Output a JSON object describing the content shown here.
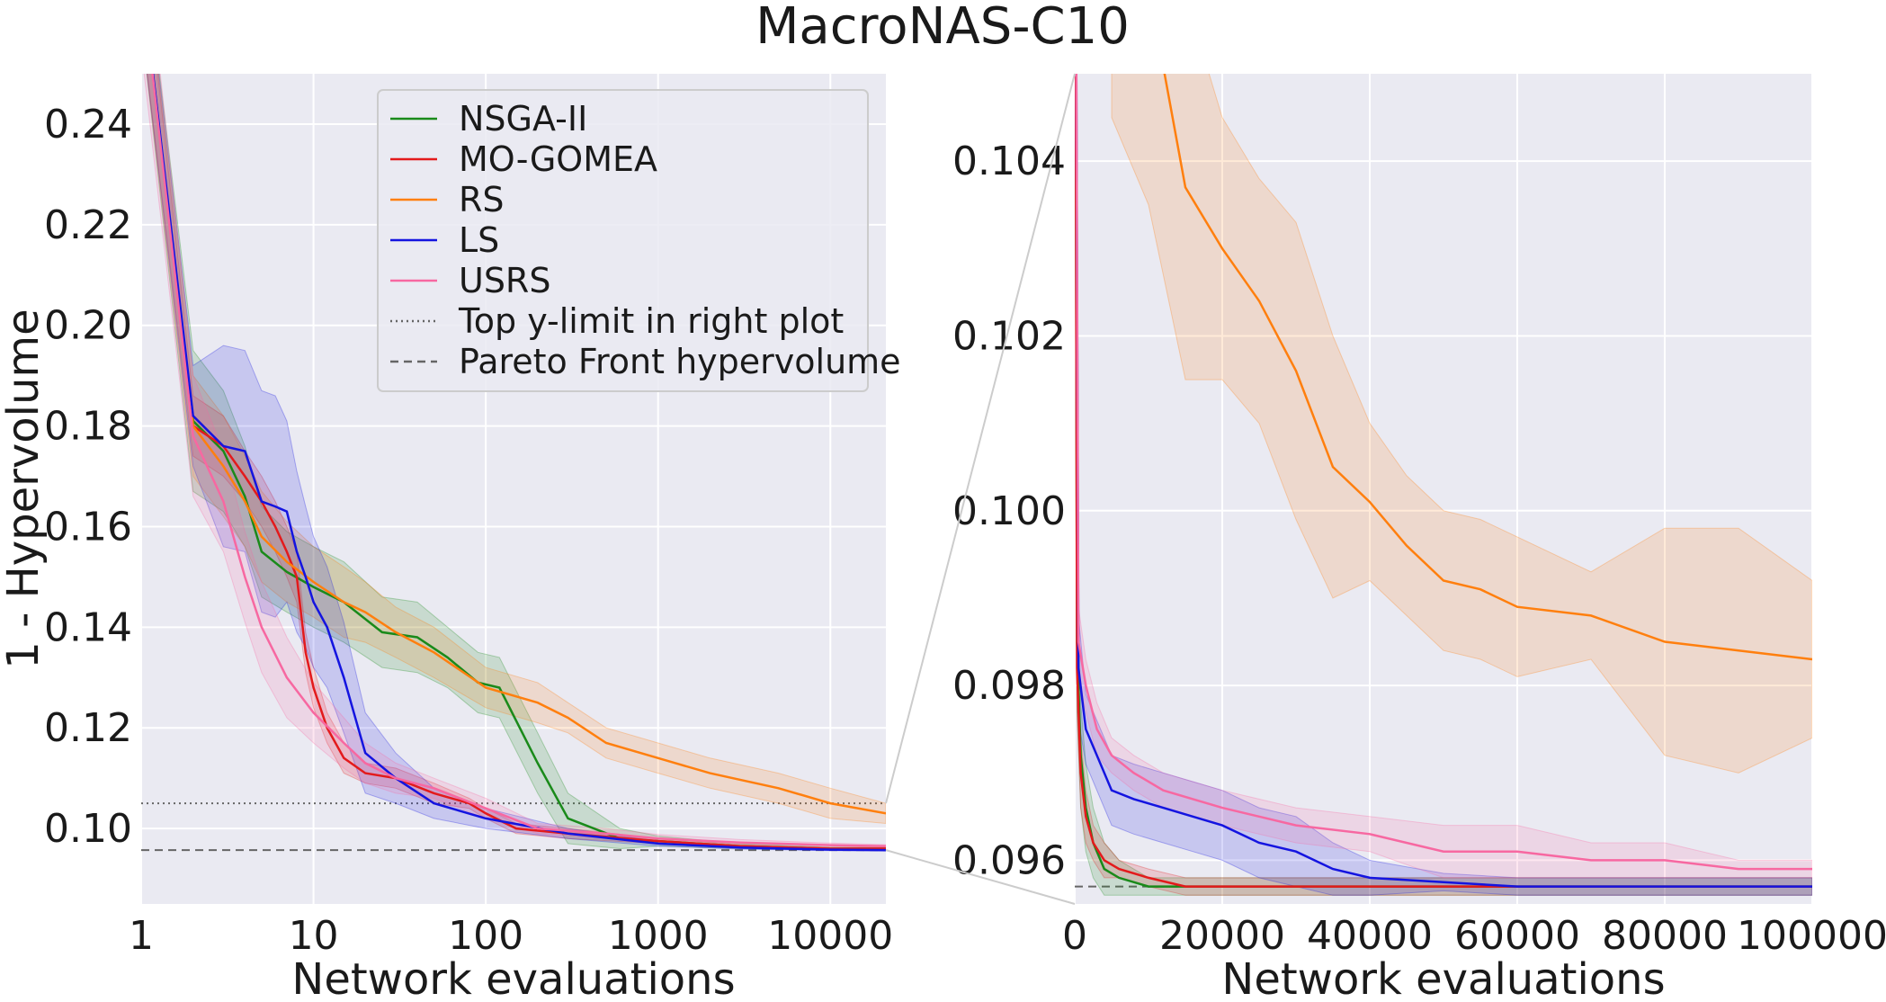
{
  "figure": {
    "title": "MacroNAS-C10"
  },
  "colors": {
    "NSGA-II": "#1a8a1a",
    "MO-GOMEA": "#e31a1c",
    "RS": "#ff7f0e",
    "LS": "#1414e0",
    "USRS": "#f768a1",
    "plot_bg": "#eaeaf2",
    "grid": "#ffffff",
    "ref_line": "#666666"
  },
  "chart_data": [
    {
      "type": "line",
      "panel": "left",
      "xscale": "log",
      "xlabel": "Network evaluations",
      "ylabel": "1 - Hypervolume",
      "xlim": [
        1,
        21000
      ],
      "ylim": [
        0.085,
        0.25
      ],
      "xticks": [
        1,
        10,
        100,
        1000,
        10000
      ],
      "xtick_labels": [
        "1",
        "10",
        "100",
        "1000",
        "10000"
      ],
      "yticks": [
        0.1,
        0.12,
        0.14,
        0.16,
        0.18,
        0.2,
        0.22,
        0.24
      ],
      "ytick_labels": [
        "0.10",
        "0.12",
        "0.14",
        "0.16",
        "0.18",
        "0.20",
        "0.22",
        "0.24"
      ],
      "grid": true,
      "legend": {
        "position": "upper-center",
        "entries": [
          {
            "label": "NSGA-II",
            "style": "solid",
            "series": "NSGA-II"
          },
          {
            "label": "MO-GOMEA",
            "style": "solid",
            "series": "MO-GOMEA"
          },
          {
            "label": "RS",
            "style": "solid",
            "series": "RS"
          },
          {
            "label": "LS",
            "style": "solid",
            "series": "LS"
          },
          {
            "label": "USRS",
            "style": "solid",
            "series": "USRS"
          },
          {
            "label": "Top y-limit in right plot",
            "style": "dotted",
            "series": "ref"
          },
          {
            "label": "Pareto Front hypervolume",
            "style": "dashed",
            "series": "ref"
          }
        ]
      },
      "hlines": [
        {
          "y": 0.105,
          "style": "dotted"
        },
        {
          "y": 0.0957,
          "style": "dashed"
        }
      ],
      "series": [
        {
          "name": "NSGA-II",
          "x": [
            1,
            2,
            3,
            4,
            5,
            7,
            10,
            15,
            25,
            40,
            60,
            90,
            120,
            200,
            300,
            600,
            1000,
            3000,
            10000,
            21000
          ],
          "y": [
            0.27,
            0.181,
            0.175,
            0.166,
            0.155,
            0.151,
            0.148,
            0.145,
            0.139,
            0.138,
            0.134,
            0.129,
            0.128,
            0.113,
            0.102,
            0.098,
            0.0975,
            0.0965,
            0.096,
            0.096
          ],
          "band_half": [
            0.01,
            0.014,
            0.012,
            0.01,
            0.009,
            0.008,
            0.008,
            0.008,
            0.007,
            0.007,
            0.006,
            0.006,
            0.006,
            0.006,
            0.005,
            0.002,
            0.001,
            0.0005,
            0.0003,
            0.0002
          ]
        },
        {
          "name": "MO-GOMEA",
          "x": [
            1,
            2,
            3,
            4,
            5,
            6,
            7,
            8,
            9,
            10,
            12,
            15,
            20,
            30,
            50,
            80,
            100,
            150,
            300,
            1000,
            3000,
            10000,
            21000
          ],
          "y": [
            0.27,
            0.18,
            0.176,
            0.17,
            0.165,
            0.16,
            0.155,
            0.15,
            0.135,
            0.128,
            0.12,
            0.114,
            0.111,
            0.11,
            0.107,
            0.105,
            0.103,
            0.1,
            0.099,
            0.0975,
            0.0965,
            0.096,
            0.096
          ],
          "band_half": [
            0.01,
            0.006,
            0.006,
            0.005,
            0.005,
            0.005,
            0.005,
            0.005,
            0.004,
            0.004,
            0.003,
            0.003,
            0.002,
            0.002,
            0.002,
            0.001,
            0.001,
            0.001,
            0.001,
            0.0005,
            0.0003,
            0.0002,
            0.0002
          ]
        },
        {
          "name": "RS",
          "x": [
            1,
            2,
            3,
            4,
            5,
            7,
            10,
            15,
            20,
            30,
            50,
            100,
            200,
            300,
            500,
            1000,
            2000,
            5000,
            10000,
            21000
          ],
          "y": [
            0.27,
            0.18,
            0.172,
            0.165,
            0.158,
            0.153,
            0.149,
            0.145,
            0.143,
            0.139,
            0.135,
            0.128,
            0.125,
            0.122,
            0.117,
            0.114,
            0.111,
            0.108,
            0.105,
            0.103
          ],
          "band_half": [
            0.01,
            0.01,
            0.01,
            0.009,
            0.009,
            0.008,
            0.007,
            0.007,
            0.006,
            0.005,
            0.005,
            0.004,
            0.004,
            0.003,
            0.003,
            0.003,
            0.003,
            0.003,
            0.003,
            0.002
          ]
        },
        {
          "name": "LS",
          "x": [
            1,
            2,
            3,
            4,
            5,
            6,
            7,
            8,
            9,
            10,
            12,
            15,
            20,
            30,
            50,
            100,
            300,
            1000,
            3000,
            10000,
            21000
          ],
          "y": [
            0.27,
            0.182,
            0.176,
            0.175,
            0.165,
            0.164,
            0.163,
            0.155,
            0.15,
            0.145,
            0.14,
            0.13,
            0.115,
            0.11,
            0.105,
            0.102,
            0.099,
            0.097,
            0.0962,
            0.0958,
            0.0957
          ],
          "band_half": [
            0.01,
            0.01,
            0.02,
            0.02,
            0.022,
            0.022,
            0.018,
            0.016,
            0.014,
            0.013,
            0.012,
            0.011,
            0.008,
            0.005,
            0.003,
            0.002,
            0.001,
            0.0005,
            0.0003,
            0.0002,
            0.0002
          ]
        },
        {
          "name": "USRS",
          "x": [
            1,
            2,
            3,
            4,
            5,
            7,
            10,
            15,
            20,
            30,
            50,
            100,
            200,
            500,
            1000,
            3000,
            10000,
            21000
          ],
          "y": [
            0.27,
            0.178,
            0.165,
            0.15,
            0.14,
            0.13,
            0.123,
            0.117,
            0.113,
            0.11,
            0.108,
            0.104,
            0.1,
            0.099,
            0.098,
            0.0972,
            0.0967,
            0.0965
          ],
          "band_half": [
            0.015,
            0.012,
            0.01,
            0.009,
            0.009,
            0.008,
            0.006,
            0.005,
            0.004,
            0.003,
            0.002,
            0.002,
            0.001,
            0.001,
            0.0008,
            0.0006,
            0.0004,
            0.0003
          ]
        }
      ]
    },
    {
      "type": "line",
      "panel": "right",
      "xscale": "linear",
      "xlabel": "Network evaluations",
      "ylabel": "",
      "xlim": [
        0,
        100000
      ],
      "ylim": [
        0.0955,
        0.105
      ],
      "xticks": [
        0,
        20000,
        40000,
        60000,
        80000,
        100000
      ],
      "xtick_labels": [
        "0",
        "20000",
        "40000",
        "60000",
        "80000",
        "100000"
      ],
      "yticks": [
        0.096,
        0.098,
        0.1,
        0.102,
        0.104
      ],
      "ytick_labels": [
        "0.096",
        "0.098",
        "0.100",
        "0.102",
        "0.104"
      ],
      "grid": true,
      "hlines": [
        {
          "y": 0.0957,
          "style": "dashed"
        }
      ],
      "series": [
        {
          "name": "NSGA-II",
          "x": [
            0,
            300,
            800,
            1500,
            2500,
            4000,
            6000,
            10000,
            15000,
            20000,
            100000
          ],
          "y": [
            0.11,
            0.0985,
            0.0972,
            0.0966,
            0.0962,
            0.0959,
            0.0958,
            0.0957,
            0.0957,
            0.0957,
            0.0957
          ],
          "band_half": [
            0.001,
            0.0008,
            0.0006,
            0.0005,
            0.0004,
            0.0003,
            0.0002,
            0.0001,
            0.0001,
            0.0001,
            0.0001
          ]
        },
        {
          "name": "MO-GOMEA",
          "x": [
            0,
            300,
            800,
            1500,
            2500,
            4000,
            6000,
            10000,
            15000,
            20000,
            100000
          ],
          "y": [
            0.11,
            0.0982,
            0.097,
            0.0965,
            0.0962,
            0.096,
            0.0959,
            0.0958,
            0.0957,
            0.0957,
            0.0957
          ],
          "band_half": [
            0.001,
            0.0005,
            0.0004,
            0.0003,
            0.0002,
            0.0002,
            0.0001,
            0.0001,
            0.0001,
            0.0001,
            0.0001
          ]
        },
        {
          "name": "RS",
          "x": [
            5000,
            10000,
            15000,
            20000,
            25000,
            30000,
            35000,
            40000,
            45000,
            50000,
            55000,
            60000,
            70000,
            80000,
            90000,
            100000
          ],
          "y": [
            0.1075,
            0.106,
            0.1037,
            0.103,
            0.1024,
            0.1016,
            0.1005,
            0.1001,
            0.0996,
            0.0992,
            0.0991,
            0.0989,
            0.0988,
            0.0985,
            0.0984,
            0.0983
          ],
          "band_half": [
            0.003,
            0.0025,
            0.0022,
            0.0015,
            0.0014,
            0.0017,
            0.0015,
            0.0009,
            0.0008,
            0.0008,
            0.0008,
            0.0008,
            0.0005,
            0.0013,
            0.0014,
            0.0009
          ]
        },
        {
          "name": "LS",
          "x": [
            0,
            500,
            1500,
            3000,
            5000,
            8000,
            12000,
            16000,
            20000,
            25000,
            30000,
            35000,
            40000,
            50000,
            60000,
            70000,
            80000,
            100000
          ],
          "y": [
            0.11,
            0.0982,
            0.0975,
            0.0972,
            0.0968,
            0.0967,
            0.0966,
            0.0965,
            0.0964,
            0.0962,
            0.0961,
            0.0959,
            0.0958,
            0.09575,
            0.0957,
            0.0957,
            0.0957,
            0.0957
          ],
          "band_half": [
            0.001,
            0.0006,
            0.0004,
            0.0004,
            0.0004,
            0.0004,
            0.0004,
            0.0004,
            0.0004,
            0.0004,
            0.0004,
            0.0003,
            0.0002,
            0.0001,
            0.0001,
            0.0001,
            0.0001,
            0.0001
          ]
        },
        {
          "name": "USRS",
          "x": [
            0,
            500,
            1500,
            3000,
            5000,
            8000,
            12000,
            20000,
            30000,
            40000,
            50000,
            60000,
            70000,
            80000,
            90000,
            100000
          ],
          "y": [
            0.11,
            0.0985,
            0.098,
            0.0975,
            0.0972,
            0.097,
            0.0968,
            0.0966,
            0.0964,
            0.0963,
            0.0961,
            0.0961,
            0.096,
            0.096,
            0.0959,
            0.0959
          ],
          "band_half": [
            0.001,
            0.0004,
            0.0003,
            0.0003,
            0.0002,
            0.0002,
            0.0002,
            0.0002,
            0.0002,
            0.0002,
            0.0003,
            0.0003,
            0.0002,
            0.0002,
            0.0001,
            0.0001
          ]
        }
      ]
    }
  ]
}
